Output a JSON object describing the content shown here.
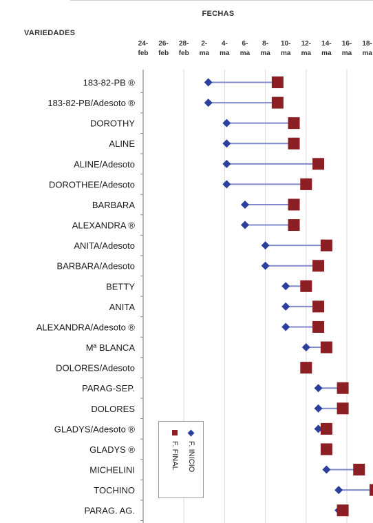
{
  "header": {
    "fechas_label": "FECHAS",
    "variedades_label": "VARIEDADES"
  },
  "legend": {
    "inicio_label": "F. INICIO",
    "final_label": "F. FINAL"
  },
  "colors": {
    "inicio_marker": "#2b3f9c",
    "final_marker": "#8b1f24",
    "connector": "#7f88c9"
  },
  "chart_data": {
    "type": "dumbbell",
    "x_ticks": [
      {
        "top": "24-",
        "bottom": "feb"
      },
      {
        "top": "26-",
        "bottom": "feb"
      },
      {
        "top": "28-",
        "bottom": "feb"
      },
      {
        "top": "2-",
        "bottom": "ma"
      },
      {
        "top": "4-",
        "bottom": "ma"
      },
      {
        "top": "6-",
        "bottom": "ma"
      },
      {
        "top": "8-",
        "bottom": "ma"
      },
      {
        "top": "10-",
        "bottom": "ma"
      },
      {
        "top": "12-",
        "bottom": "ma"
      },
      {
        "top": "14-",
        "bottom": "ma"
      },
      {
        "top": "16-",
        "bottom": "ma"
      },
      {
        "top": "18-",
        "bottom": "ma"
      }
    ],
    "x_tick_index_range": [
      0,
      11
    ],
    "gridline_tick_indices": [
      0,
      2,
      4,
      6,
      8,
      10
    ],
    "series": [
      {
        "name": "F. INICIO",
        "marker": "diamond"
      },
      {
        "name": "F. FINAL",
        "marker": "square"
      }
    ],
    "rows": [
      {
        "label": "183-82-PB ®",
        "inicio": 3.2,
        "final": 6.6
      },
      {
        "label": "183-82-PB/Adesoto ®",
        "inicio": 3.2,
        "final": 6.6
      },
      {
        "label": "DOROTHY",
        "inicio": 4.1,
        "final": 7.4
      },
      {
        "label": "ALINE",
        "inicio": 4.1,
        "final": 7.4
      },
      {
        "label": "ALINE/Adesoto",
        "inicio": 4.1,
        "final": 8.6
      },
      {
        "label": "DOROTHEE/Adesoto",
        "inicio": 4.1,
        "final": 8.0
      },
      {
        "label": "BARBARA",
        "inicio": 5.0,
        "final": 7.4
      },
      {
        "label": "ALEXANDRA ®",
        "inicio": 5.0,
        "final": 7.4
      },
      {
        "label": "ANITA/Adesoto",
        "inicio": 6.0,
        "final": 9.0
      },
      {
        "label": "BARBARA/Adesoto",
        "inicio": 6.0,
        "final": 8.6
      },
      {
        "label": "BETTY",
        "inicio": 7.0,
        "final": 8.0
      },
      {
        "label": "ANITA",
        "inicio": 7.0,
        "final": 8.6
      },
      {
        "label": "ALEXANDRA/Adesoto ®",
        "inicio": 7.0,
        "final": 8.6
      },
      {
        "label": "Mª BLANCA",
        "inicio": 8.0,
        "final": 9.0
      },
      {
        "label": "DOLORES/Adesoto",
        "inicio": 8.0,
        "final": 8.0
      },
      {
        "label": "PARAG-SEP.",
        "inicio": 8.6,
        "final": 9.8
      },
      {
        "label": "DOLORES",
        "inicio": 8.6,
        "final": 9.8
      },
      {
        "label": "GLADYS/Adesoto ®",
        "inicio": 8.6,
        "final": 9.0
      },
      {
        "label": "GLADYS ®",
        "inicio": 9.0,
        "final": 9.0
      },
      {
        "label": "MICHELINI",
        "inicio": 9.0,
        "final": 10.6
      },
      {
        "label": "TOCHINO",
        "inicio": 9.6,
        "final": 11.4
      },
      {
        "label": "PARAG. AG.",
        "inicio": 9.6,
        "final": 9.8
      }
    ]
  }
}
